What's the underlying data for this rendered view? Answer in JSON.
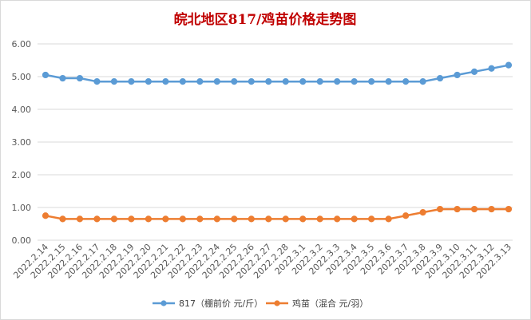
{
  "chart_data": {
    "type": "line",
    "title": "皖北地区817/鸡苗价格走势图",
    "title_color": "#c00000",
    "categories": [
      "2022.2.14",
      "2022.2.15",
      "2022.2.16",
      "2022.2.17",
      "2022.2.18",
      "2022.2.19",
      "2022.2.20",
      "2022.2.21",
      "2022.2.22",
      "2022.2.23",
      "2022.2.24",
      "2022.2.25",
      "2022.2.26",
      "2022.2.27",
      "2022.2.28",
      "2022.3.1",
      "2022.3.2",
      "2022.3.3",
      "2022.3.4",
      "2022.3.5",
      "2022.3.6",
      "2022.3.7",
      "2022.3.8",
      "2022.3.9",
      "2022.3.10",
      "2022.3.11",
      "2022.3.12",
      "2022.3.13"
    ],
    "series": [
      {
        "name": "817（棚前价 元/斤）",
        "color": "#5b9bd5",
        "values": [
          5.05,
          4.95,
          4.95,
          4.85,
          4.85,
          4.85,
          4.85,
          4.85,
          4.85,
          4.85,
          4.85,
          4.85,
          4.85,
          4.85,
          4.85,
          4.85,
          4.85,
          4.85,
          4.85,
          4.85,
          4.85,
          4.85,
          4.85,
          4.95,
          5.05,
          5.15,
          5.25,
          5.35
        ]
      },
      {
        "name": "鸡苗（混合 元/羽）",
        "color": "#ed7d31",
        "values": [
          0.75,
          0.65,
          0.65,
          0.65,
          0.65,
          0.65,
          0.65,
          0.65,
          0.65,
          0.65,
          0.65,
          0.65,
          0.65,
          0.65,
          0.65,
          0.65,
          0.65,
          0.65,
          0.65,
          0.65,
          0.65,
          0.75,
          0.85,
          0.95,
          0.95,
          0.95,
          0.95,
          0.95
        ]
      }
    ],
    "ylim": [
      0,
      6
    ],
    "yticks": [
      "0.00",
      "1.00",
      "2.00",
      "3.00",
      "4.00",
      "5.00",
      "6.00"
    ],
    "grid": true,
    "gridline_color": "#d9d9d9",
    "legend_position": "bottom"
  }
}
